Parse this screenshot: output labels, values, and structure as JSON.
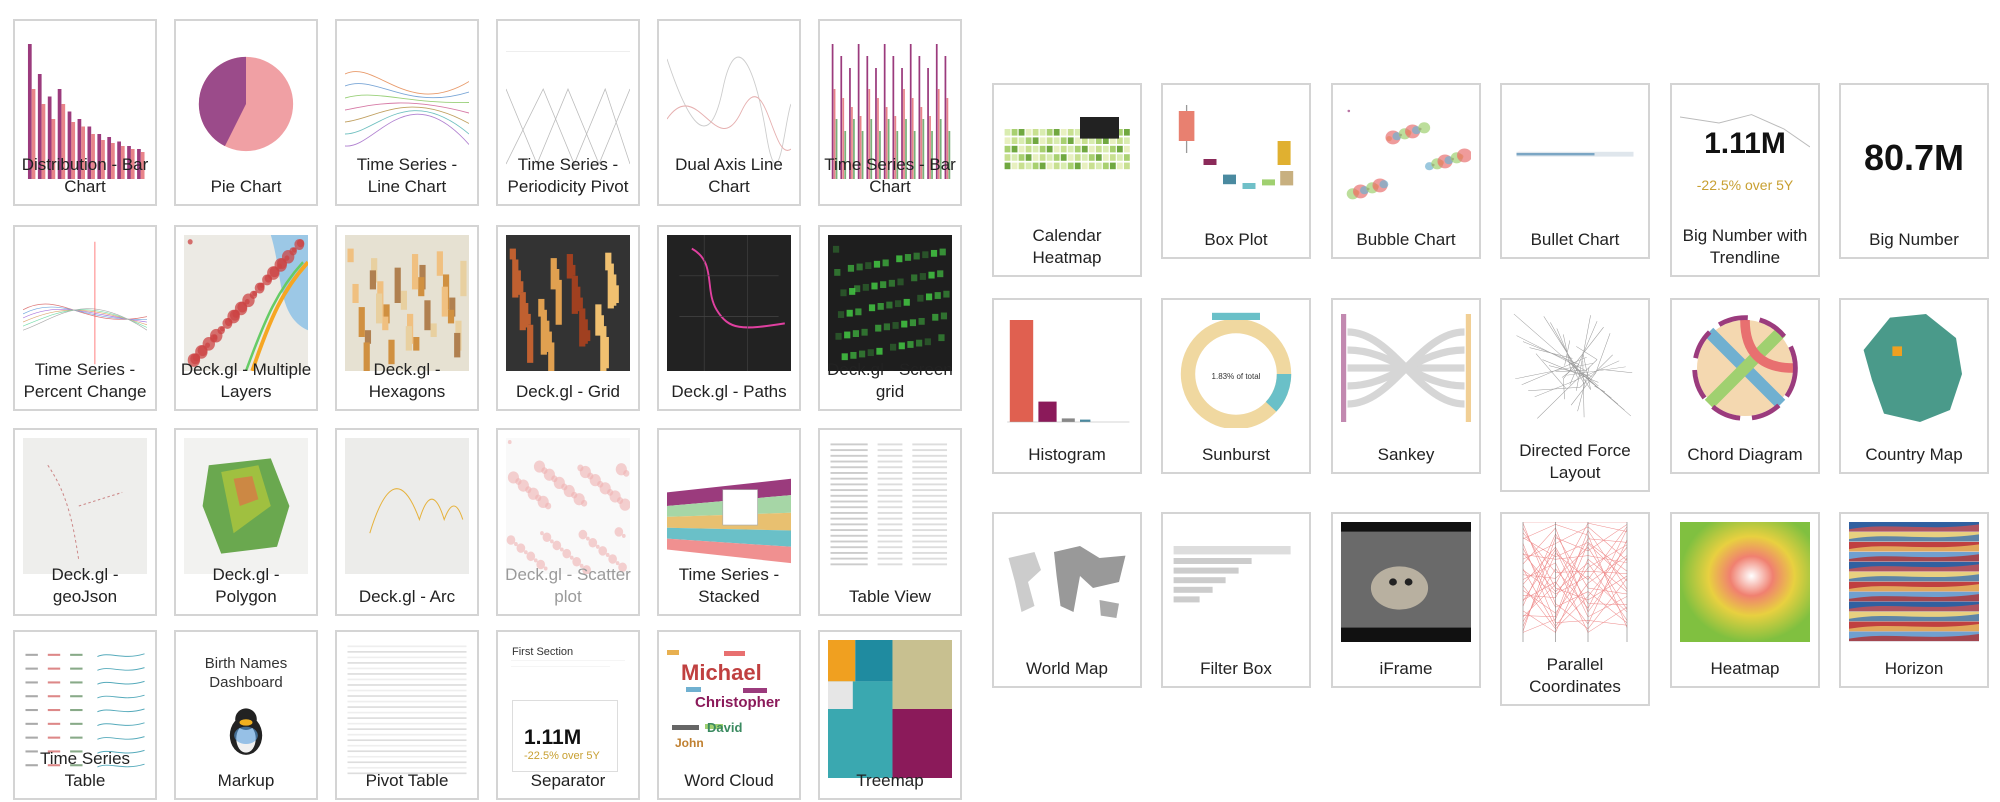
{
  "left_gallery": {
    "tiles": [
      {
        "label": "Distribution - Bar Chart"
      },
      {
        "label": "Pie Chart"
      },
      {
        "label": "Time Series - Line Chart"
      },
      {
        "label": "Time Series - Periodicity Pivot"
      },
      {
        "label": "Dual Axis Line Chart"
      },
      {
        "label": "Time Series - Bar Chart"
      },
      {
        "label": "Time Series - Percent Change"
      },
      {
        "label": "Deck.gl - Multiple Layers"
      },
      {
        "label": "Deck.gl - Hexagons"
      },
      {
        "label": "Deck.gl - Grid"
      },
      {
        "label": "Deck.gl - Paths"
      },
      {
        "label": "Deck.gl - Screen grid"
      },
      {
        "label": "Deck.gl - geoJson"
      },
      {
        "label": "Deck.gl - Polygon"
      },
      {
        "label": "Deck.gl - Arc"
      },
      {
        "label": "Deck.gl - Scatter plot"
      },
      {
        "label": "Time Series - Stacked"
      },
      {
        "label": "Table View"
      },
      {
        "label": "Time Series Table"
      },
      {
        "label": "Markup"
      },
      {
        "label": "Pivot Table"
      },
      {
        "label": "Separator"
      },
      {
        "label": "Word Cloud"
      },
      {
        "label": "Treemap"
      }
    ],
    "markup_preview": {
      "title": "Birth Names Dashboard"
    },
    "separator_preview": {
      "section_title": "First Section",
      "value": "1.11M",
      "subtitle": "-22.5% over 5Y"
    },
    "word_cloud_preview": {
      "words": [
        "Michael",
        "Christopher",
        "David",
        "John"
      ]
    }
  },
  "right_gallery": {
    "tiles": [
      {
        "label": "Calendar Heatmap"
      },
      {
        "label": "Box Plot"
      },
      {
        "label": "Bubble Chart"
      },
      {
        "label": "Bullet Chart"
      },
      {
        "label": "Big Number with Trendline"
      },
      {
        "label": "Big Number"
      },
      {
        "label": "Histogram"
      },
      {
        "label": "Sunburst"
      },
      {
        "label": "Sankey"
      },
      {
        "label": "Directed Force Layout"
      },
      {
        "label": "Chord Diagram"
      },
      {
        "label": "Country Map"
      },
      {
        "label": "World Map"
      },
      {
        "label": "Filter Box"
      },
      {
        "label": "iFrame"
      },
      {
        "label": "Parallel Coordinates"
      },
      {
        "label": "Heatmap"
      },
      {
        "label": "Horizon"
      }
    ],
    "big_number_trendline": {
      "value": "1.11M",
      "subtitle": "-22.5% over 5Y"
    },
    "big_number": {
      "value": "80.7M"
    },
    "sunburst": {
      "center_value": "1.83% of total"
    }
  }
}
